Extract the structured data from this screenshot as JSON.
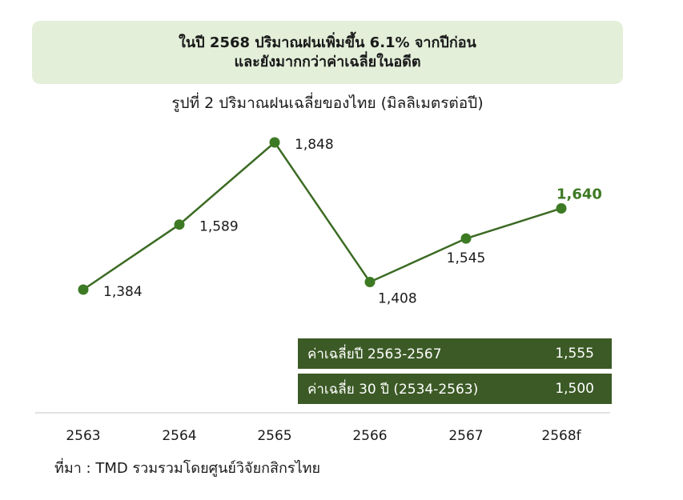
{
  "banner": {
    "line1": "ในปี 2568 ปริมาณฝนเพิ่มขึ้น 6.1% จากปีก่อน",
    "line2": "และยังมากกว่าค่าเฉลี่ยในอดีต"
  },
  "colors": {
    "line": "#3c6b24",
    "point": "#3d7a24",
    "highlight_label": "#3d7a24",
    "banner_bg": "#e3efd9",
    "avg_box_bg": "#3c5a26"
  },
  "chart_data": {
    "type": "line",
    "title": "รูปที่ 2 ปริมาณฝนเฉลี่ยของไทย (มิลลิเมตรต่อปี)",
    "xlabel": "",
    "ylabel": "",
    "categories": [
      "2563",
      "2564",
      "2565",
      "2566",
      "2567",
      "2568f"
    ],
    "values": [
      1384,
      1589,
      1848,
      1408,
      1545,
      1640
    ],
    "data_labels": [
      "1,384",
      "1,589",
      "1,848",
      "1,408",
      "1,545",
      "1,640"
    ],
    "highlight_index": 5,
    "ylim": [
      1300,
      1900
    ],
    "grid": false,
    "legend": "none",
    "annotations": [
      {
        "label": "ค่าเฉลี่ยปี 2563-2567",
        "value": "1,555"
      },
      {
        "label": "ค่าเฉลี่ย 30 ปี (2534-2563)",
        "value": "1,500"
      }
    ]
  },
  "source": "ที่มา : TMD รวมรวมโดยศูนย์วิจัยกสิกรไทย"
}
